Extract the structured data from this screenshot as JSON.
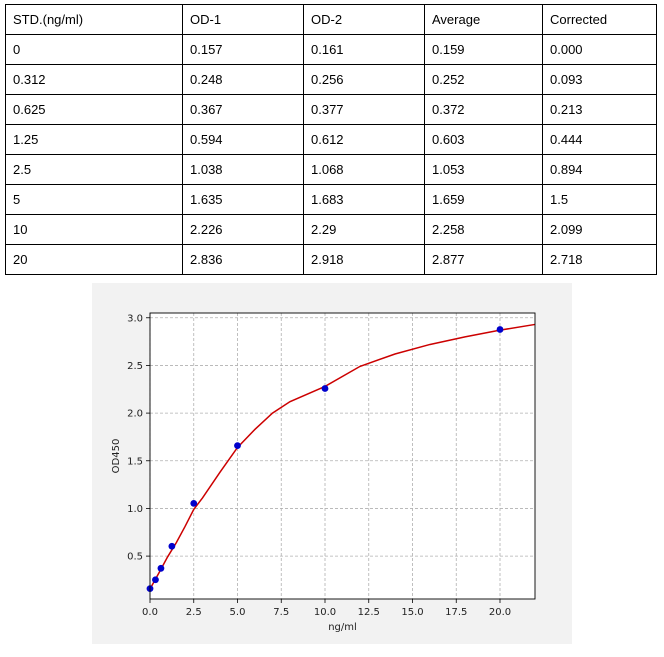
{
  "table": {
    "headers": [
      "STD.(ng/ml)",
      "OD-1",
      "OD-2",
      "Average",
      "Corrected"
    ],
    "rows": [
      [
        "0",
        "0.157",
        "0.161",
        "0.159",
        "0.000"
      ],
      [
        "0.312",
        "0.248",
        "0.256",
        "0.252",
        "0.093"
      ],
      [
        "0.625",
        "0.367",
        "0.377",
        "0.372",
        "0.213"
      ],
      [
        "1.25",
        "0.594",
        "0.612",
        "0.603",
        "0.444"
      ],
      [
        "2.5",
        "1.038",
        "1.068",
        "1.053",
        "0.894"
      ],
      [
        "5",
        "1.635",
        "1.683",
        "1.659",
        "1.5"
      ],
      [
        "10",
        "2.226",
        "2.29",
        "2.258",
        "2.099"
      ],
      [
        "20",
        "2.836",
        "2.918",
        "2.877",
        "2.718"
      ]
    ]
  },
  "chart_data": {
    "type": "scatter",
    "title": "",
    "xlabel": "ng/ml",
    "ylabel": "OD450",
    "xlim": [
      0,
      22
    ],
    "ylim": [
      0.05,
      3.05
    ],
    "xticks": [
      "0.0",
      "2.5",
      "5.0",
      "7.5",
      "10.0",
      "12.5",
      "15.0",
      "17.5",
      "20.0"
    ],
    "yticks": [
      "0.5",
      "1.0",
      "1.5",
      "2.0",
      "2.5",
      "3.0"
    ],
    "grid": true,
    "series": [
      {
        "kind": "points",
        "color": "#0000cc",
        "x": [
          0,
          0.312,
          0.625,
          1.25,
          2.5,
          5,
          10,
          20
        ],
        "y": [
          0.159,
          0.252,
          0.372,
          0.603,
          1.053,
          1.659,
          2.258,
          2.877
        ]
      },
      {
        "kind": "fitted-curve",
        "color": "#cc0000",
        "x": [
          0,
          0.5,
          1,
          1.5,
          2,
          2.5,
          3,
          4,
          5,
          6,
          7,
          8,
          10,
          12,
          14,
          16,
          18,
          20,
          22
        ],
        "y": [
          0.155,
          0.32,
          0.49,
          0.64,
          0.81,
          0.99,
          1.11,
          1.38,
          1.64,
          1.83,
          2.0,
          2.12,
          2.28,
          2.49,
          2.62,
          2.72,
          2.8,
          2.87,
          2.93
        ]
      }
    ]
  }
}
